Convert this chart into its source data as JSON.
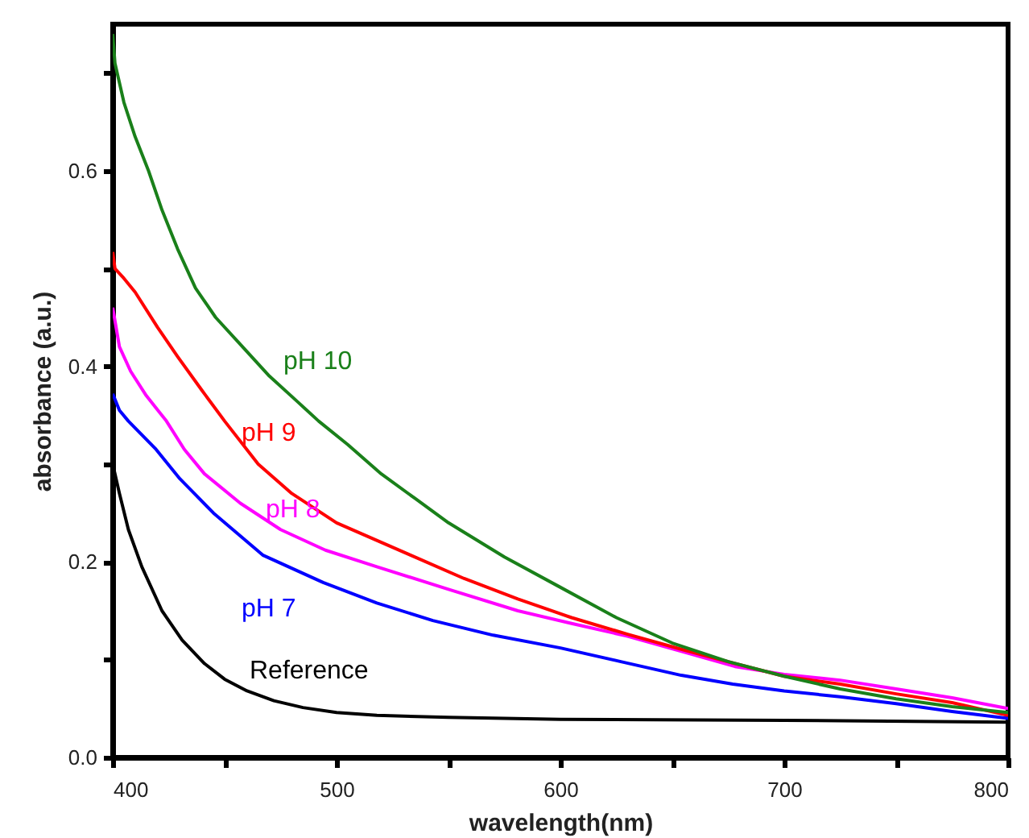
{
  "chart_data": {
    "type": "line",
    "xlabel": "wavelength(nm)",
    "ylabel": "absorbance (a.u.)",
    "xlim": [
      400,
      800
    ],
    "ylim": [
      0,
      0.75
    ],
    "xticks": [
      400,
      {
        "value": 450,
        "label": null
      },
      500,
      {
        "value": 550,
        "label": null
      },
      600,
      {
        "value": 650,
        "label": null
      },
      700,
      {
        "value": 750,
        "label": null
      },
      800
    ],
    "yticks": [
      {
        "value": 0,
        "label": "0.0"
      },
      {
        "value": 0.1,
        "label": null
      },
      0.2,
      {
        "value": 0.3,
        "label": null
      },
      0.4,
      {
        "value": 0.5,
        "label": null
      },
      0.6,
      {
        "value": 0.7,
        "label": null
      }
    ],
    "grid": false,
    "marker": "none",
    "line_style": "solid",
    "series": [
      {
        "name": "pH 10",
        "color": "#1a801a",
        "x": [
          400,
          401,
          405,
          410,
          416,
          422,
          429,
          437,
          446,
          458,
          470,
          482,
          492,
          505,
          520,
          535,
          550,
          575,
          600,
          625,
          650,
          675,
          700,
          725,
          750,
          775,
          800
        ],
        "values": [
          0.74,
          0.71,
          0.67,
          0.635,
          0.6,
          0.56,
          0.52,
          0.48,
          0.45,
          0.42,
          0.39,
          0.365,
          0.344,
          0.32,
          0.29,
          0.265,
          0.24,
          0.205,
          0.174,
          0.143,
          0.117,
          0.098,
          0.083,
          0.07,
          0.06,
          0.052,
          0.046
        ]
      },
      {
        "name": "pH 9",
        "color": "#ff0000",
        "x": [
          400,
          401,
          405,
          410,
          420,
          429,
          440,
          450,
          465,
          480,
          500,
          533,
          557,
          581,
          605,
          630,
          655,
          678,
          700,
          725,
          750,
          775,
          800
        ],
        "values": [
          0.517,
          0.5,
          0.49,
          0.476,
          0.44,
          0.41,
          0.375,
          0.344,
          0.3,
          0.27,
          0.24,
          0.207,
          0.183,
          0.162,
          0.143,
          0.126,
          0.11,
          0.096,
          0.083,
          0.075,
          0.065,
          0.056,
          0.043
        ]
      },
      {
        "name": "pH 8",
        "color": "#ff00ff",
        "x": [
          400,
          403,
          408,
          415,
          424,
          432,
          441,
          457,
          475,
          495,
          518,
          550,
          581,
          605,
          630,
          655,
          678,
          700,
          725,
          750,
          775,
          800
        ],
        "values": [
          0.46,
          0.42,
          0.395,
          0.37,
          0.344,
          0.315,
          0.29,
          0.26,
          0.233,
          0.212,
          0.195,
          0.172,
          0.15,
          0.137,
          0.124,
          0.108,
          0.093,
          0.085,
          0.079,
          0.07,
          0.061,
          0.05
        ]
      },
      {
        "name": "pH 7",
        "color": "#0000ff",
        "x": [
          400,
          403,
          407,
          419,
          430,
          445,
          467,
          494,
          518,
          543,
          570,
          600,
          627,
          654,
          677,
          700,
          725,
          750,
          775,
          800
        ],
        "values": [
          0.372,
          0.355,
          0.344,
          0.316,
          0.285,
          0.25,
          0.207,
          0.179,
          0.158,
          0.14,
          0.125,
          0.112,
          0.098,
          0.084,
          0.075,
          0.068,
          0.062,
          0.055,
          0.047,
          0.04
        ]
      },
      {
        "name": "Reference",
        "color": "#000000",
        "x": [
          400,
          403,
          407,
          413,
          422,
          431,
          441,
          450,
          460,
          472,
          485,
          500,
          518,
          550,
          600,
          700,
          800
        ],
        "values": [
          0.3,
          0.27,
          0.233,
          0.195,
          0.15,
          0.12,
          0.096,
          0.08,
          0.068,
          0.058,
          0.051,
          0.046,
          0.043,
          0.041,
          0.039,
          0.038,
          0.036
        ]
      }
    ]
  }
}
